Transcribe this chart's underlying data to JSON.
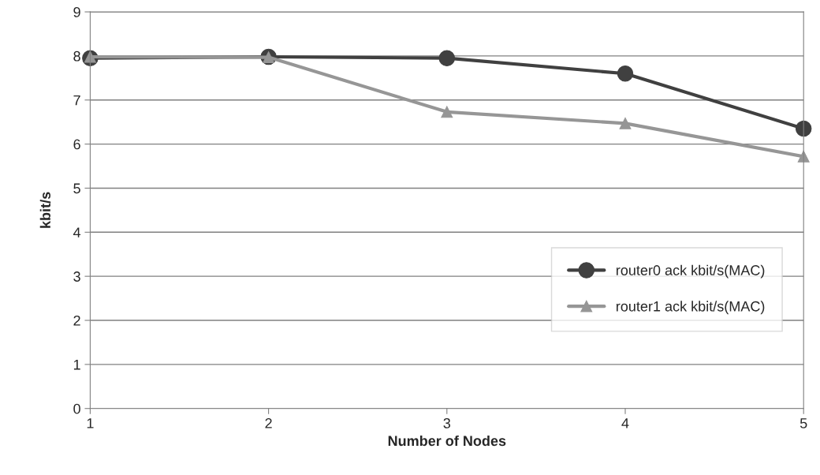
{
  "chart_data": {
    "type": "line",
    "xlabel": "Number of Nodes",
    "ylabel": "kbit/s",
    "x": [
      1,
      2,
      3,
      4,
      5
    ],
    "series": [
      {
        "name": "router0 ack kbit/s(MAC)",
        "color": "#404040",
        "marker": "circle",
        "values": [
          7.95,
          7.98,
          7.95,
          7.6,
          6.35
        ]
      },
      {
        "name": "router1 ack kbit/s(MAC)",
        "color": "#969696",
        "marker": "triangle",
        "values": [
          7.98,
          7.97,
          6.73,
          6.47,
          5.72
        ]
      }
    ],
    "xlim": [
      1,
      5
    ],
    "xticks": [
      1,
      2,
      3,
      4,
      5
    ],
    "ylim": [
      0,
      9
    ],
    "yticks": [
      0,
      1,
      2,
      3,
      4,
      5,
      6,
      7,
      8,
      9
    ],
    "grid": "y",
    "legend": "center right",
    "line_style": "solid"
  }
}
